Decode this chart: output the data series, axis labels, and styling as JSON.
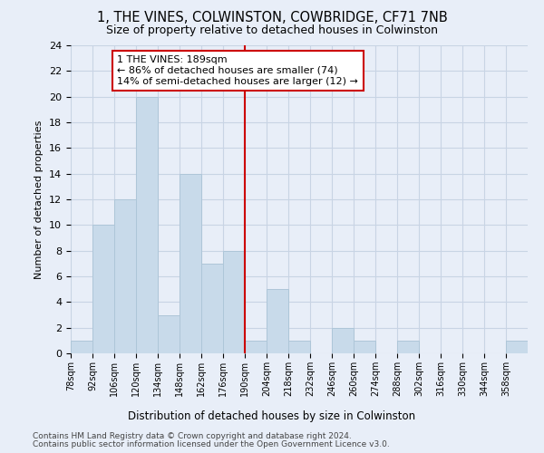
{
  "title": "1, THE VINES, COLWINSTON, COWBRIDGE, CF71 7NB",
  "subtitle": "Size of property relative to detached houses in Colwinston",
  "xlabel_bottom": "Distribution of detached houses by size in Colwinston",
  "ylabel": "Number of detached properties",
  "bin_edges": [
    78,
    92,
    106,
    120,
    134,
    148,
    162,
    176,
    190,
    204,
    218,
    232,
    246,
    260,
    274,
    288,
    302,
    316,
    330,
    344,
    358,
    372
  ],
  "bin_labels": [
    "78sqm",
    "92sqm",
    "106sqm",
    "120sqm",
    "134sqm",
    "148sqm",
    "162sqm",
    "176sqm",
    "190sqm",
    "204sqm",
    "218sqm",
    "232sqm",
    "246sqm",
    "260sqm",
    "274sqm",
    "288sqm",
    "302sqm",
    "316sqm",
    "330sqm",
    "344sqm",
    "358sqm"
  ],
  "bar_values": [
    1,
    10,
    12,
    20,
    3,
    14,
    7,
    8,
    1,
    5,
    1,
    0,
    2,
    1,
    0,
    1,
    0,
    0,
    0,
    0,
    1
  ],
  "bar_color": "#c8daea",
  "bar_edge_color": "#aec6d8",
  "vline_value": 190,
  "vline_color": "#cc0000",
  "annotation_text": "1 THE VINES: 189sqm\n← 86% of detached houses are smaller (74)\n14% of semi-detached houses are larger (12) →",
  "annotation_box_color": "#cc0000",
  "ylim": [
    0,
    24
  ],
  "yticks": [
    0,
    2,
    4,
    6,
    8,
    10,
    12,
    14,
    16,
    18,
    20,
    22,
    24
  ],
  "grid_color": "#c8d4e4",
  "footer1": "Contains HM Land Registry data © Crown copyright and database right 2024.",
  "footer2": "Contains public sector information licensed under the Open Government Licence v3.0.",
  "background_color": "#e8eef8",
  "plot_bg_color": "#e8eef8",
  "title_fontsize": 10.5,
  "subtitle_fontsize": 9
}
